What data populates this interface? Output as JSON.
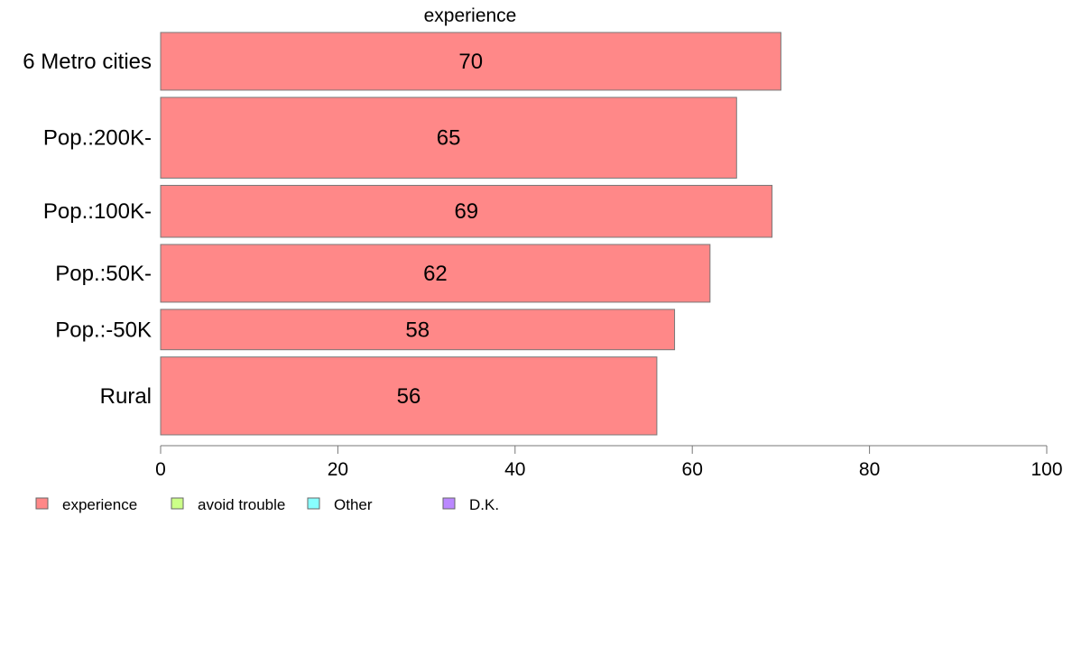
{
  "chart_data": {
    "type": "bar",
    "orientation": "horizontal",
    "title": "experience",
    "categories": [
      "6 Metro cities",
      "Pop.:200K-",
      "Pop.:100K-",
      "Pop.:50K-",
      "Pop.:-50K",
      "Rural"
    ],
    "series": [
      {
        "name": "experience",
        "values": [
          70,
          65,
          69,
          62,
          58,
          56
        ],
        "color": "#ff8888"
      }
    ],
    "bar_weights": [
      1.0,
      1.4,
      0.9,
      1.0,
      0.7,
      1.35
    ],
    "xlim": [
      0,
      100
    ],
    "xticks": [
      0,
      20,
      40,
      60,
      80,
      100
    ],
    "tick_labels": [
      "0",
      "20",
      "40",
      "60",
      "80",
      "100"
    ],
    "grid": false,
    "legend": {
      "placement": "bottom-left",
      "items": [
        {
          "label": "experience",
          "color": "#ff8888"
        },
        {
          "label": "avoid trouble",
          "color": "#ccff88"
        },
        {
          "label": "Other",
          "color": "#88ffff"
        },
        {
          "label": "D.K.",
          "color": "#bb88ff"
        }
      ]
    }
  }
}
